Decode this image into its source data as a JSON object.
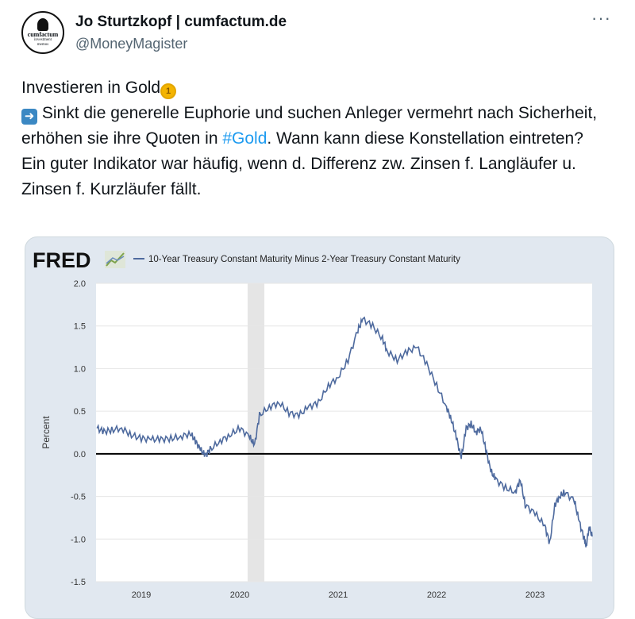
{
  "author": {
    "name": "Jo Sturtzkopf | cumfactum.de",
    "handle": "@MoneyMagister",
    "avatar_text": [
      "cumfactum",
      "investment",
      "memos"
    ]
  },
  "more_icon": "more-dots-icon",
  "tweet": {
    "line1": "Investieren in Gold",
    "line2a": "Sinkt die generelle Euphorie und suchen Anleger vermehrt nach Sicherheit, erhöhen sie ihre Quoten in ",
    "hashtag": "#Gold",
    "line2b": ". Wann kann diese Konstellation eintreten?",
    "line3": "Ein guter Indikator war häufig, wenn d. Differenz zw. Zinsen f. Langläufer u. Zinsen f. Kurzläufer fällt."
  },
  "chart_data": {
    "type": "line",
    "brand": "FRED",
    "title": "10-Year Treasury Constant Maturity Minus 2-Year Treasury Constant Maturity",
    "ylabel": "Percent",
    "xlabel": "",
    "ylim": [
      -1.5,
      2.0
    ],
    "xlim": [
      2018.54,
      2023.58
    ],
    "yticks": [
      "2.0",
      "1.5",
      "1.0",
      "0.5",
      "0.0",
      "-0.5",
      "-1.0",
      "-1.5"
    ],
    "ytick_values": [
      2.0,
      1.5,
      1.0,
      0.5,
      0.0,
      -0.5,
      -1.0,
      -1.5
    ],
    "xticks": [
      "2019",
      "2020",
      "2021",
      "2022",
      "2023"
    ],
    "xtick_values": [
      2019,
      2020,
      2021,
      2022,
      2023
    ],
    "recession": [
      2020.08,
      2020.25
    ],
    "line_color": "#4e6a9e",
    "series": [
      {
        "name": "T10Y2Y",
        "x": [
          2018.55,
          2018.62,
          2018.7,
          2018.8,
          2018.9,
          2019.0,
          2019.1,
          2019.2,
          2019.3,
          2019.4,
          2019.5,
          2019.55,
          2019.6,
          2019.65,
          2019.7,
          2019.8,
          2019.9,
          2020.0,
          2020.1,
          2020.15,
          2020.2,
          2020.3,
          2020.4,
          2020.5,
          2020.6,
          2020.7,
          2020.8,
          2020.9,
          2021.0,
          2021.1,
          2021.2,
          2021.25,
          2021.35,
          2021.45,
          2021.5,
          2021.6,
          2021.7,
          2021.8,
          2021.9,
          2022.0,
          2022.1,
          2022.15,
          2022.2,
          2022.25,
          2022.3,
          2022.35,
          2022.4,
          2022.45,
          2022.5,
          2022.55,
          2022.6,
          2022.7,
          2022.8,
          2022.85,
          2022.9,
          2023.0,
          2023.1,
          2023.15,
          2023.2,
          2023.25,
          2023.3,
          2023.4,
          2023.45,
          2023.5,
          2023.52,
          2023.55,
          2023.58
        ],
        "values": [
          0.3,
          0.26,
          0.28,
          0.3,
          0.22,
          0.18,
          0.17,
          0.17,
          0.18,
          0.2,
          0.24,
          0.15,
          0.05,
          -0.02,
          0.05,
          0.15,
          0.22,
          0.3,
          0.2,
          0.1,
          0.45,
          0.55,
          0.6,
          0.48,
          0.45,
          0.55,
          0.6,
          0.8,
          0.9,
          1.1,
          1.45,
          1.58,
          1.5,
          1.35,
          1.2,
          1.1,
          1.2,
          1.25,
          1.05,
          0.8,
          0.55,
          0.4,
          0.2,
          -0.05,
          0.3,
          0.35,
          0.25,
          0.3,
          0.05,
          -0.2,
          -0.3,
          -0.4,
          -0.45,
          -0.3,
          -0.6,
          -0.7,
          -0.85,
          -1.05,
          -0.6,
          -0.5,
          -0.45,
          -0.55,
          -0.8,
          -1.0,
          -1.08,
          -0.85,
          -0.97
        ]
      }
    ]
  }
}
